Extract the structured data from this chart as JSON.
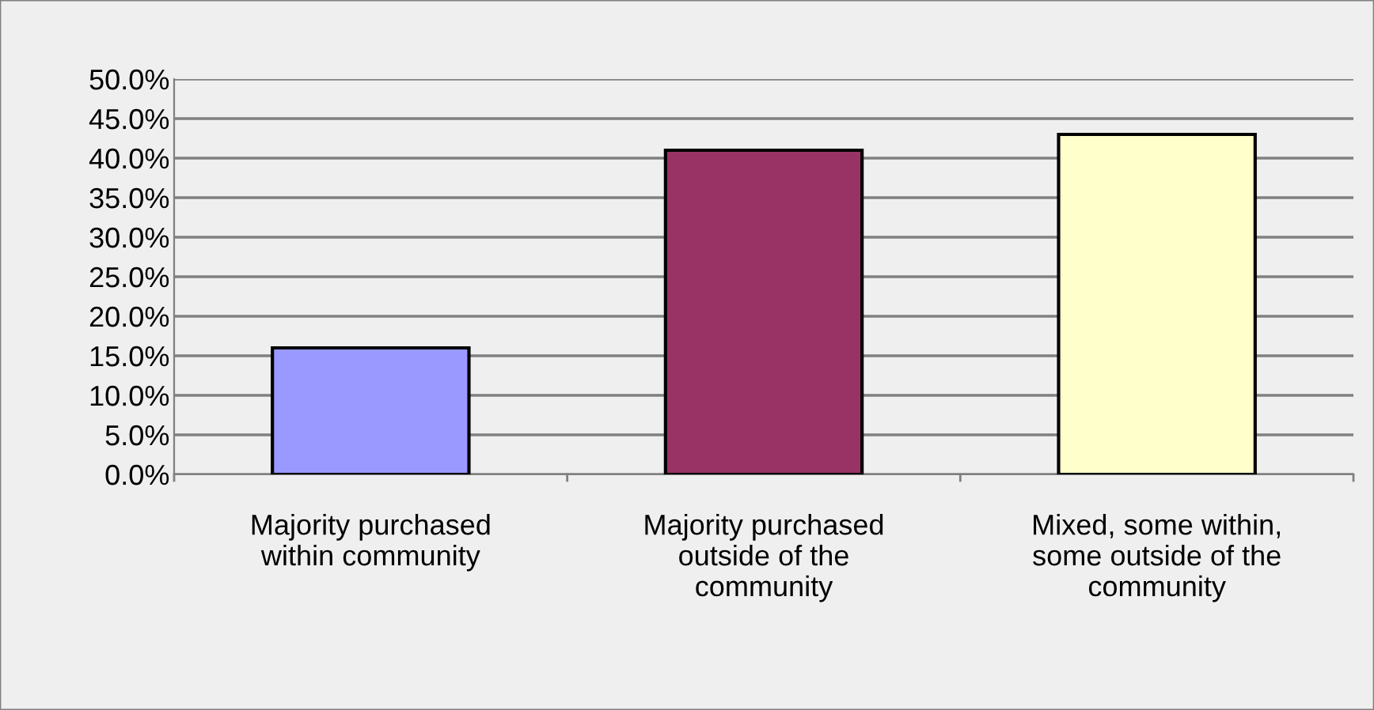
{
  "chart_data": {
    "type": "bar",
    "categories": [
      "Majority purchased\nwithin community",
      "Majority purchased\noutside of the\ncommunity",
      "Mixed, some within,\nsome outside of the\ncommunity"
    ],
    "values": [
      16.0,
      41.0,
      43.0
    ],
    "colors": [
      "#9999ff",
      "#993366",
      "#ffffcc"
    ],
    "ylim": [
      0,
      50
    ],
    "yticks": [
      {
        "value": 0,
        "label": "0.0%"
      },
      {
        "value": 5,
        "label": "5.0%"
      },
      {
        "value": 10,
        "label": "10.0%"
      },
      {
        "value": 15,
        "label": "15.0%"
      },
      {
        "value": 20,
        "label": "20.0%"
      },
      {
        "value": 25,
        "label": "25.0%"
      },
      {
        "value": 30,
        "label": "30.0%"
      },
      {
        "value": 35,
        "label": "35.0%"
      },
      {
        "value": 40,
        "label": "40.0%"
      },
      {
        "value": 45,
        "label": "45.0%"
      },
      {
        "value": 50,
        "label": "50.0%"
      }
    ],
    "grid": "y",
    "legend": false
  }
}
